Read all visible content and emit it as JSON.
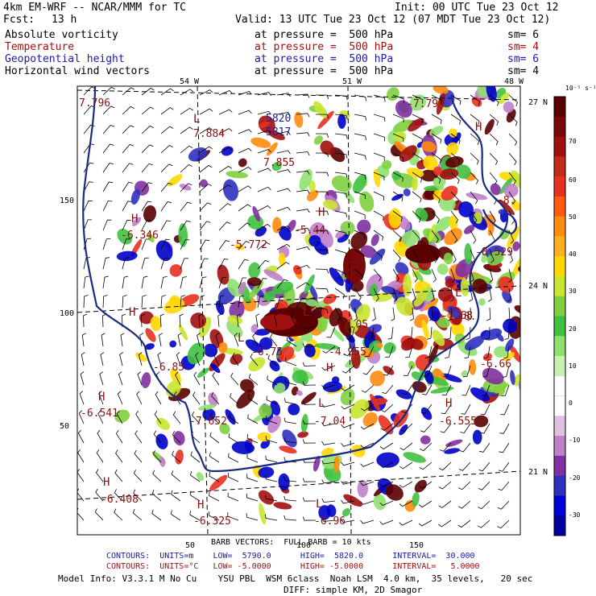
{
  "header": {
    "model_title": "4km EM-WRF -- NCAR/MMM for TC",
    "init": "Init: 00 UTC Tue 23 Oct 12",
    "fcst_label": "Fcst:",
    "fcst_value": "13 h",
    "valid": "Valid: 13 UTC Tue 23 Oct 12 (07 MDT Tue 23 Oct 12)"
  },
  "fields": [
    {
      "name": "Absolute vorticity",
      "level": "at pressure =  500 hPa",
      "sm": "sm= 6",
      "color": "#000000"
    },
    {
      "name": "Temperature",
      "level": "at pressure =  500 hPa",
      "sm": "sm= 4",
      "color": "#a01010"
    },
    {
      "name": "Geopotential height",
      "level": "at pressure =  500 hPa",
      "sm": "sm= 6",
      "color": "#1a1aa8"
    },
    {
      "name": "Horizontal wind vectors",
      "level": "at pressure =  500 hPa",
      "sm": "sm= 4",
      "color": "#000000"
    }
  ],
  "chart_data": {
    "type": "heatmap",
    "top_lon_labels": [
      "54 W",
      "51 W",
      "48 W"
    ],
    "right_lat_labels": [
      "27 N",
      "24 N",
      "21 N"
    ],
    "x_ticks": [
      "50",
      "100",
      "150"
    ],
    "y_ticks": [
      "150",
      "100",
      "50"
    ],
    "colorbar": {
      "unit": "10⁻⁵ s⁻¹",
      "labels": [
        "70",
        "60",
        "50",
        "40",
        "30",
        "20",
        "10",
        "0",
        "-10",
        "-20",
        "-30"
      ],
      "colors": [
        "#5a0000",
        "#7a0808",
        "#a01010",
        "#c42a1a",
        "#e83020",
        "#ff5a10",
        "#ff8c10",
        "#ffb020",
        "#ffd700",
        "#c8e630",
        "#80d040",
        "#40c040",
        "#90e070",
        "#c8f0b0",
        "#ffffff",
        "#ffffff",
        "#e0c0e0",
        "#c080c8",
        "#8030a0",
        "#3030c0",
        "#0000d8",
        "#0000a0"
      ]
    },
    "annotations": [
      {
        "text": "7.796",
        "kind": "temp"
      },
      {
        "text": "L",
        "kind": "temp"
      },
      {
        "text": "7.884",
        "kind": "temp"
      },
      {
        "text": "7.855",
        "kind": "temp"
      },
      {
        "text": "H",
        "kind": "temp"
      },
      {
        "text": "-6.346",
        "kind": "temp"
      },
      {
        "text": "-5.772",
        "kind": "temp"
      },
      {
        "text": "H",
        "kind": "temp"
      },
      {
        "text": "-5.44",
        "kind": "temp"
      },
      {
        "text": "L",
        "kind": "temp"
      },
      {
        "text": "H",
        "kind": "temp"
      },
      {
        "text": "L",
        "kind": "temp"
      },
      {
        "text": "-6.75",
        "kind": "temp"
      },
      {
        "text": "-7.05",
        "kind": "temp"
      },
      {
        "text": "-4.955",
        "kind": "temp"
      },
      {
        "text": "H",
        "kind": "temp"
      },
      {
        "text": "-6.85",
        "kind": "temp"
      },
      {
        "text": "H",
        "kind": "temp"
      },
      {
        "text": "-6.541",
        "kind": "temp"
      },
      {
        "text": "-7.652",
        "kind": "temp"
      },
      {
        "text": "L",
        "kind": "temp"
      },
      {
        "text": "-7.04",
        "kind": "temp"
      },
      {
        "text": "H",
        "kind": "temp"
      },
      {
        "text": "-6.555",
        "kind": "temp"
      },
      {
        "text": "H",
        "kind": "temp"
      },
      {
        "text": "-6.408",
        "kind": "temp"
      },
      {
        "text": "H",
        "kind": "temp"
      },
      {
        "text": "-6.325",
        "kind": "temp"
      },
      {
        "text": "L",
        "kind": "temp"
      },
      {
        "text": "-6.96",
        "kind": "temp"
      },
      {
        "text": "-7.79",
        "kind": "temp"
      },
      {
        "text": "H",
        "kind": "temp"
      },
      {
        "text": "-8.",
        "kind": "temp"
      },
      {
        "text": "-8.529",
        "kind": "temp"
      },
      {
        "text": "L",
        "kind": "temp"
      },
      {
        "text": "-8.",
        "kind": "temp"
      },
      {
        "text": "-6.66",
        "kind": "temp"
      },
      {
        "text": "-7.68",
        "kind": "temp"
      },
      {
        "text": "5820",
        "kind": "height"
      },
      {
        "text": "5817",
        "kind": "height"
      }
    ]
  },
  "footer": {
    "barb_line": "BARB VECTORS:  FULL BARB = 10 kts",
    "contours1": "CONTOURS:  UNITS=m    LOW=  5790.0      HIGH=  5820.0      INTERVAL=  30.000",
    "contours2": "CONTOURS:  UNITS=°C   LOW= -5.0000      HIGH= -5.0000      INTERVAL=   5.0000",
    "model_info": "Model Info: V3.3.1 M No Cu    YSU PBL  WSM 6class  Noah LSM  4.0 km,  35 levels,   20 sec",
    "diff_line": "DIFF: simple KM, 2D Smagor"
  }
}
